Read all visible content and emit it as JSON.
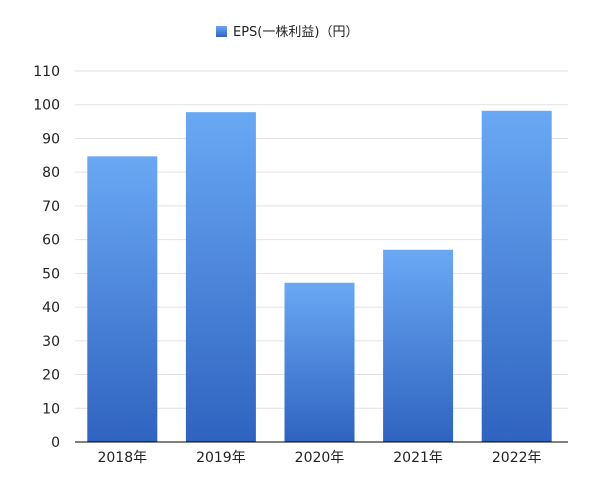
{
  "chart_data": {
    "type": "bar",
    "title": "",
    "xlabel": "",
    "ylabel": "",
    "categories": [
      "2018年",
      "2019年",
      "2020年",
      "2021年",
      "2022年"
    ],
    "series": [
      {
        "name": "EPS(一株利益)（円）",
        "values": [
          84.7,
          97.8,
          47.2,
          57.0,
          98.2
        ]
      }
    ],
    "ylim": [
      0,
      110
    ],
    "yticks": [
      0,
      10,
      20,
      30,
      40,
      50,
      60,
      70,
      80,
      90,
      100,
      110
    ],
    "grid": true,
    "legend_position": "top-center",
    "colors": {
      "bar_top": "#6aa8f4",
      "bar_bottom": "#2f63c0",
      "grid": "#e2e2e2",
      "axis": "#000000"
    }
  }
}
